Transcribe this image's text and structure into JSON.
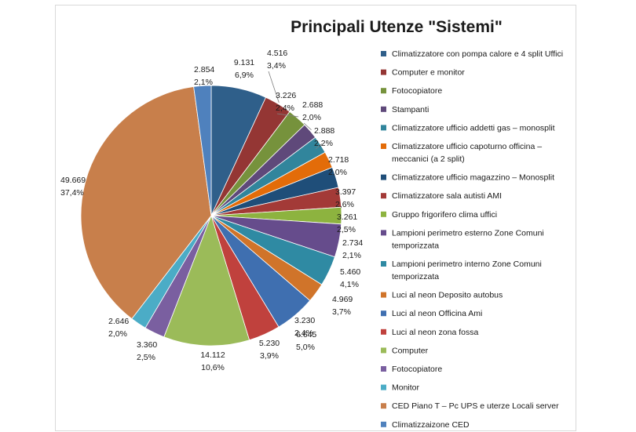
{
  "chart_data": {
    "type": "pie",
    "title": "Principali Utenze \"Sistemi\"",
    "slices": [
      {
        "label": "Climatizzatore con pompa calore e 4 split Uffici",
        "value": "9.131",
        "percent": "6,9%",
        "v": 9131,
        "color": "#2f5f8a"
      },
      {
        "label": "Computer e monitor",
        "value": "4.516",
        "percent": "3,4%",
        "v": 4516,
        "color": "#943634"
      },
      {
        "label": "Fotocopiatore",
        "value": "3.226",
        "percent": "2,4%",
        "v": 3226,
        "color": "#76923c"
      },
      {
        "label": "Stampanti",
        "value": "2.688",
        "percent": "2,0%",
        "v": 2688,
        "color": "#5f497a"
      },
      {
        "label": "Climatizzatore ufficio addetti gas – monosplit",
        "value": "2.888",
        "percent": "2,2%",
        "v": 2888,
        "color": "#31859c"
      },
      {
        "label": "Climatizzatore ufficio capoturno officina – meccanici (a 2 split)",
        "value": "2.718",
        "percent": "2,0%",
        "v": 2718,
        "color": "#e36c09"
      },
      {
        "label": "Climatizzatore ufficio magazzino – Monosplit",
        "value": "3.397",
        "percent": "2,6%",
        "v": 3397,
        "color": "#1f4e79"
      },
      {
        "label": "Climatizzatore sala autisti AMI",
        "value": "3.261",
        "percent": "2,5%",
        "v": 3261,
        "color": "#a33a37"
      },
      {
        "label": "Gruppo frigorifero clima uffici",
        "value": "2.734",
        "percent": "2,1%",
        "v": 2734,
        "color": "#8db33f"
      },
      {
        "label": "Lampioni perimetro esterno Zone Comuni temporizzata",
        "value": "5.460",
        "percent": "4,1%",
        "v": 5460,
        "color": "#664c8c"
      },
      {
        "label": "Lampioni perimetro interno Zone Comuni temporizzata",
        "value": "4.969",
        "percent": "3,7%",
        "v": 4969,
        "color": "#2f8aa3"
      },
      {
        "label": "Luci al neon Deposito autobus",
        "value": "3.230",
        "percent": "2,4%",
        "v": 3230,
        "color": "#d0742a"
      },
      {
        "label": "Luci al neon Officina Ami",
        "value": "6.645",
        "percent": "5,0%",
        "v": 6645,
        "color": "#3f6fb0"
      },
      {
        "label": "Luci al neon zona fossa",
        "value": "5.230",
        "percent": "3,9%",
        "v": 5230,
        "color": "#c0413d"
      },
      {
        "label": "Computer",
        "value": "14.112",
        "percent": "10,6%",
        "v": 14112,
        "color": "#9bbb59"
      },
      {
        "label": "Fotocopiatore",
        "value": "3.360",
        "percent": "2,5%",
        "v": 3360,
        "color": "#7a5fa0"
      },
      {
        "label": "Monitor",
        "value": "2.646",
        "percent": "2,0%",
        "v": 2646,
        "color": "#4bacc6"
      },
      {
        "label": "CED Piano T – Pc  UPS e uterze Locali server",
        "value": "49.669",
        "percent": "37,4%",
        "v": 49669,
        "color": "#c87f4b"
      },
      {
        "label": "Climatizzaizone CED",
        "value": "2.854",
        "percent": "2,1%",
        "v": 2854,
        "color": "#4f81bd"
      }
    ],
    "legend_position": "right"
  }
}
